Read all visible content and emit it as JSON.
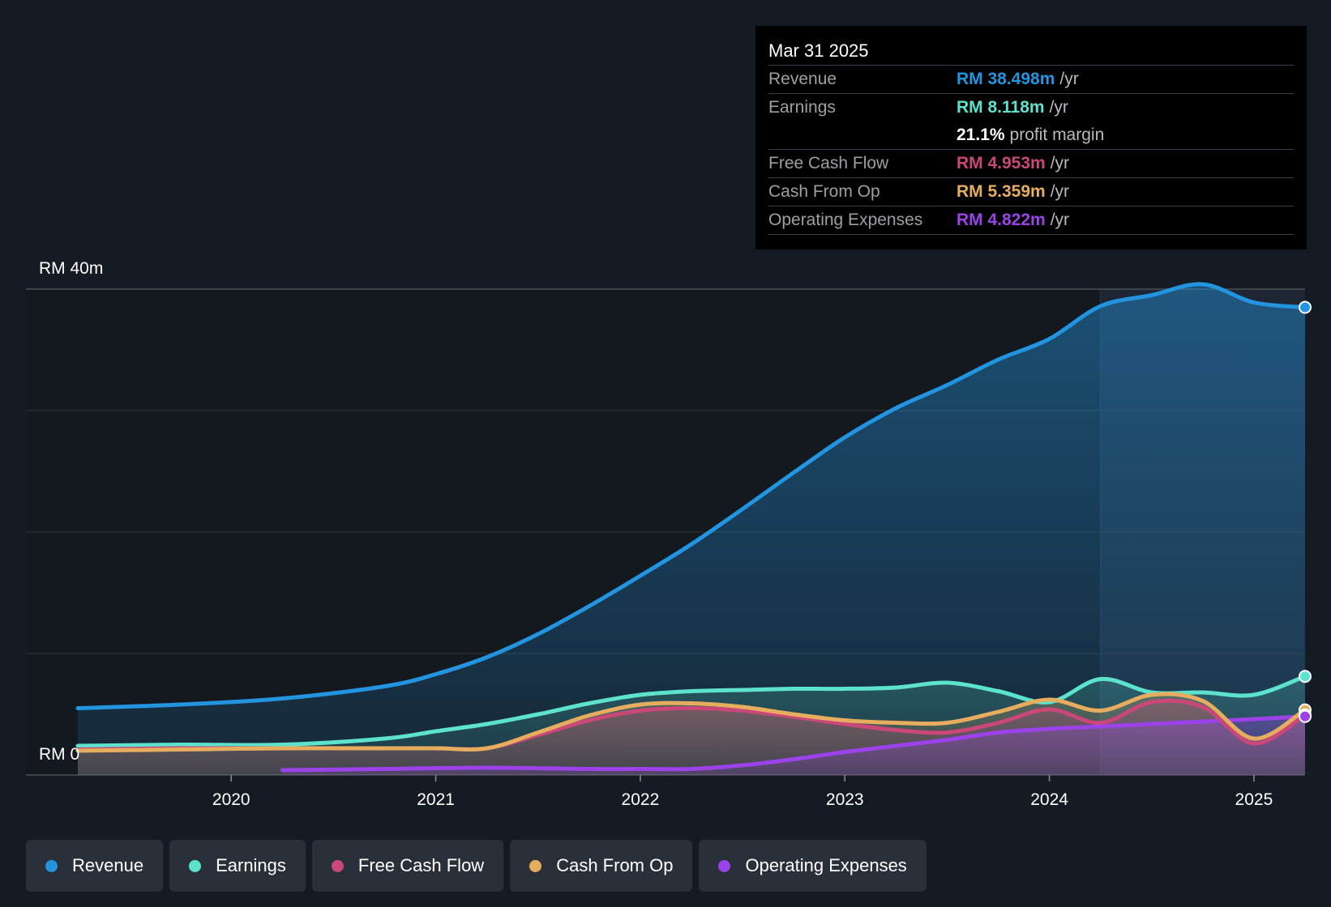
{
  "colors": {
    "revenue": "#2394df",
    "earnings": "#5de2cd",
    "fcf": "#c94879",
    "cfo": "#e6ad5e",
    "opex": "#9b43e9",
    "background": "#151b23",
    "grid": "#2f353d"
  },
  "tooltip": {
    "date": "Mar 31 2025",
    "rows": [
      {
        "label": "Revenue",
        "value": "RM 38.498m",
        "unit": "/yr"
      },
      {
        "label": "Earnings",
        "value": "RM 8.118m",
        "unit": "/yr"
      },
      {
        "margin_pct": "21.1%",
        "margin_label": "profit margin"
      },
      {
        "label": "Free Cash Flow",
        "value": "RM 4.953m",
        "unit": "/yr"
      },
      {
        "label": "Cash From Op",
        "value": "RM 5.359m",
        "unit": "/yr"
      },
      {
        "label": "Operating Expenses",
        "value": "RM 4.822m",
        "unit": "/yr"
      }
    ]
  },
  "legend": [
    {
      "label": "Revenue",
      "icon": "revenue-dot-icon"
    },
    {
      "label": "Earnings",
      "icon": "earnings-dot-icon"
    },
    {
      "label": "Free Cash Flow",
      "icon": "fcf-dot-icon"
    },
    {
      "label": "Cash From Op",
      "icon": "cfo-dot-icon"
    },
    {
      "label": "Operating Expenses",
      "icon": "opex-dot-icon"
    }
  ],
  "chart_data": {
    "type": "area",
    "title": "",
    "xlabel": "",
    "ylabel": "",
    "ylim": [
      0,
      40
    ],
    "xlim": [
      2019.25,
      2025.25
    ],
    "y_axis_labels": [
      "RM 40m",
      "RM 0"
    ],
    "x_ticks": [
      2020,
      2021,
      2022,
      2023,
      2024,
      2025
    ],
    "x_tick_labels": [
      "2020",
      "2021",
      "2022",
      "2023",
      "2024",
      "2025"
    ],
    "highlight_start": 2024.25,
    "grid": true,
    "series": [
      {
        "name": "Revenue",
        "key": "revenue",
        "x": [
          2019.25,
          2019.75,
          2020.25,
          2020.75,
          2021.0,
          2021.25,
          2021.5,
          2021.75,
          2022.0,
          2022.25,
          2022.5,
          2022.75,
          2023.0,
          2023.25,
          2023.5,
          2023.75,
          2024.0,
          2024.25,
          2024.5,
          2024.75,
          2025.0,
          2025.25
        ],
        "values": [
          5.5,
          5.8,
          6.3,
          7.3,
          8.3,
          9.7,
          11.6,
          13.9,
          16.4,
          19.0,
          21.9,
          24.9,
          27.8,
          30.2,
          32.1,
          34.2,
          35.9,
          38.6,
          39.5,
          40.4,
          38.9,
          38.498
        ]
      },
      {
        "name": "Earnings",
        "key": "earnings",
        "x": [
          2019.25,
          2019.75,
          2020.25,
          2020.75,
          2021.0,
          2021.25,
          2021.5,
          2021.75,
          2022.0,
          2022.25,
          2022.5,
          2022.75,
          2023.0,
          2023.25,
          2023.5,
          2023.75,
          2024.0,
          2024.25,
          2024.5,
          2024.75,
          2025.0,
          2025.25
        ],
        "values": [
          2.4,
          2.5,
          2.5,
          3.0,
          3.6,
          4.2,
          5.0,
          5.9,
          6.6,
          6.9,
          7.0,
          7.1,
          7.1,
          7.2,
          7.6,
          6.9,
          6.0,
          7.9,
          6.8,
          6.8,
          6.6,
          8.118
        ]
      },
      {
        "name": "Free Cash Flow",
        "key": "fcf",
        "x": [
          2019.25,
          2019.75,
          2020.25,
          2020.75,
          2021.0,
          2021.25,
          2021.5,
          2021.75,
          2022.0,
          2022.25,
          2022.5,
          2022.75,
          2023.0,
          2023.25,
          2023.5,
          2023.75,
          2024.0,
          2024.25,
          2024.5,
          2024.75,
          2025.0,
          2025.25
        ],
        "values": [
          2.1,
          2.2,
          2.2,
          2.2,
          2.2,
          2.2,
          3.3,
          4.5,
          5.3,
          5.5,
          5.3,
          4.8,
          4.2,
          3.7,
          3.5,
          4.3,
          5.4,
          4.3,
          6.0,
          5.6,
          2.6,
          4.953
        ]
      },
      {
        "name": "Cash From Op",
        "key": "cfo",
        "x": [
          2019.25,
          2019.75,
          2020.25,
          2020.75,
          2021.0,
          2021.25,
          2021.5,
          2021.75,
          2022.0,
          2022.25,
          2022.5,
          2022.75,
          2023.0,
          2023.25,
          2023.5,
          2023.75,
          2024.0,
          2024.25,
          2024.5,
          2024.75,
          2025.0,
          2025.25
        ],
        "values": [
          2.0,
          2.1,
          2.2,
          2.2,
          2.2,
          2.2,
          3.5,
          4.9,
          5.8,
          5.9,
          5.6,
          5.0,
          4.5,
          4.3,
          4.3,
          5.2,
          6.2,
          5.3,
          6.6,
          6.1,
          3.0,
          5.359
        ]
      },
      {
        "name": "Operating Expenses",
        "key": "opex",
        "x": [
          2020.25,
          2020.75,
          2021.25,
          2021.75,
          2022.0,
          2022.25,
          2022.5,
          2022.75,
          2023.0,
          2023.25,
          2023.5,
          2023.75,
          2024.0,
          2024.25,
          2024.5,
          2024.75,
          2025.0,
          2025.25
        ],
        "values": [
          0.4,
          0.5,
          0.6,
          0.5,
          0.5,
          0.5,
          0.8,
          1.3,
          1.9,
          2.4,
          2.9,
          3.5,
          3.8,
          4.0,
          4.2,
          4.4,
          4.6,
          4.822
        ]
      }
    ]
  }
}
